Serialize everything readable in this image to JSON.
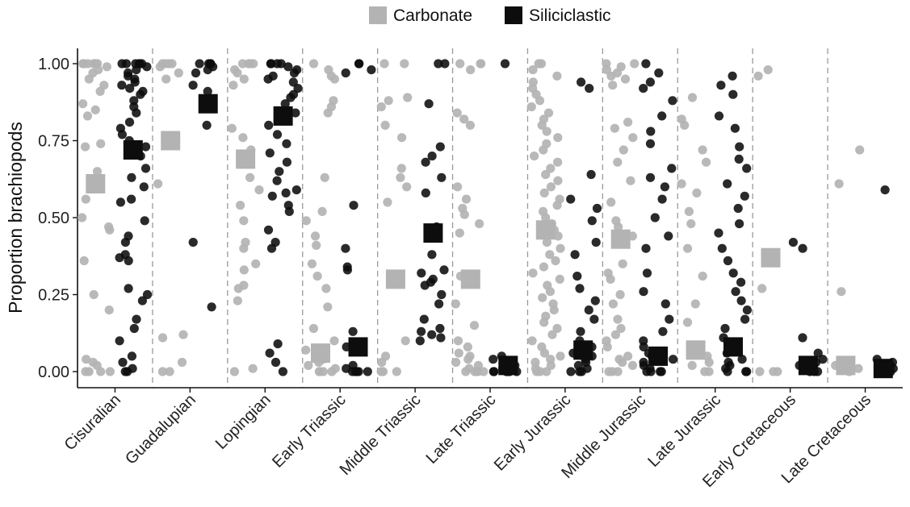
{
  "chart_data": {
    "type": "scatter",
    "subtype": "jittered strip plot with mean markers",
    "ylabel": "Proportion brachiopods",
    "xlabel": "",
    "ylim": [
      0,
      1
    ],
    "y_ticks": [
      "0.00",
      "0.25",
      "0.50",
      "0.75",
      "1.00"
    ],
    "grid": false,
    "legend_position": "top-center",
    "categories": [
      "Cisuralian",
      "Guadalupian",
      "Lopingian",
      "Early Triassic",
      "Middle Triassic",
      "Late Triassic",
      "Early Jurassic",
      "Middle Jurassic",
      "Late Jurassic",
      "Early Cretaceous",
      "Late Cretaceous"
    ],
    "series": [
      {
        "name": "Carbonate",
        "color": "#b3b3b3",
        "means": [
          0.61,
          0.75,
          0.69,
          0.06,
          0.3,
          0.3,
          0.46,
          0.43,
          0.07,
          0.37,
          0.02
        ],
        "points": [
          [
            1.0,
            1.0,
            1.0,
            1.0,
            1.0,
            1.0,
            1.0,
            0.99,
            0.98,
            0.97,
            0.95,
            0.93,
            0.91,
            0.87,
            0.85,
            0.83,
            0.74,
            0.73,
            0.65,
            0.6,
            0.56,
            0.5,
            0.47,
            0.46,
            0.36,
            0.25,
            0.2,
            0.04,
            0.03,
            0.02,
            0.0,
            0.0,
            0.0,
            0.0
          ],
          [
            1.0,
            1.0,
            1.0,
            1.0,
            0.99,
            0.97,
            0.95,
            0.74,
            0.61,
            0.12,
            0.11,
            0.03,
            0.0,
            0.0
          ],
          [
            1.0,
            1.0,
            1.0,
            1.0,
            0.98,
            0.97,
            0.95,
            0.93,
            0.79,
            0.76,
            0.72,
            0.63,
            0.59,
            0.54,
            0.49,
            0.42,
            0.4,
            0.35,
            0.33,
            0.28,
            0.27,
            0.23,
            0.01,
            0.0
          ],
          [
            1.0,
            0.98,
            0.96,
            0.95,
            0.88,
            0.86,
            0.84,
            0.63,
            0.52,
            0.49,
            0.44,
            0.41,
            0.35,
            0.31,
            0.27,
            0.21,
            0.14,
            0.1,
            0.07,
            0.05,
            0.04,
            0.03,
            0.02,
            0.01,
            0.0,
            0.0,
            0.0,
            0.0
          ],
          [
            1.0,
            1.0,
            0.89,
            0.88,
            0.86,
            0.8,
            0.76,
            0.66,
            0.63,
            0.6,
            0.55,
            0.1,
            0.05,
            0.03,
            0.0,
            0.0,
            0.0
          ],
          [
            1.0,
            1.0,
            1.0,
            0.98,
            0.84,
            0.82,
            0.8,
            0.6,
            0.56,
            0.53,
            0.51,
            0.48,
            0.45,
            0.31,
            0.22,
            0.15,
            0.1,
            0.08,
            0.06,
            0.05,
            0.04,
            0.03,
            0.02,
            0.01,
            0.0,
            0.0,
            0.0,
            0.0,
            0.0
          ],
          [
            1.0,
            1.0,
            0.98,
            0.96,
            0.94,
            0.92,
            0.9,
            0.88,
            0.86,
            0.84,
            0.82,
            0.8,
            0.78,
            0.76,
            0.74,
            0.72,
            0.7,
            0.68,
            0.66,
            0.64,
            0.62,
            0.6,
            0.58,
            0.56,
            0.54,
            0.52,
            0.5,
            0.48,
            0.46,
            0.44,
            0.42,
            0.4,
            0.38,
            0.36,
            0.34,
            0.32,
            0.3,
            0.28,
            0.26,
            0.24,
            0.22,
            0.2,
            0.18,
            0.16,
            0.14,
            0.12,
            0.1,
            0.08,
            0.06,
            0.05,
            0.04,
            0.03,
            0.02,
            0.01,
            0.0,
            0.0,
            0.0
          ],
          [
            1.0,
            1.0,
            0.99,
            0.98,
            0.97,
            0.96,
            0.95,
            0.93,
            0.81,
            0.79,
            0.76,
            0.72,
            0.68,
            0.62,
            0.55,
            0.49,
            0.47,
            0.44,
            0.35,
            0.32,
            0.3,
            0.25,
            0.22,
            0.17,
            0.14,
            0.12,
            0.1,
            0.08,
            0.05,
            0.04,
            0.03,
            0.02,
            0.0,
            0.0,
            0.0
          ],
          [
            0.89,
            0.82,
            0.8,
            0.72,
            0.68,
            0.61,
            0.58,
            0.52,
            0.48,
            0.4,
            0.31,
            0.22,
            0.16,
            0.08,
            0.05,
            0.03,
            0.02,
            0.0,
            0.0
          ],
          [
            0.98,
            0.96,
            0.27,
            0.0,
            0.0,
            0.0
          ],
          [
            0.72,
            0.61,
            0.26,
            0.03,
            0.02,
            0.01,
            0.0
          ]
        ]
      },
      {
        "name": "Siliciclastic",
        "color": "#0d0d0d",
        "means": [
          0.72,
          0.87,
          0.83,
          0.08,
          0.45,
          0.02,
          0.07,
          0.05,
          0.08,
          0.02,
          0.01
        ],
        "points": [
          [
            1.0,
            1.0,
            1.0,
            1.0,
            1.0,
            1.0,
            0.99,
            0.98,
            0.97,
            0.96,
            0.95,
            0.94,
            0.93,
            0.92,
            0.91,
            0.9,
            0.88,
            0.86,
            0.84,
            0.81,
            0.79,
            0.77,
            0.75,
            0.73,
            0.7,
            0.66,
            0.63,
            0.6,
            0.56,
            0.55,
            0.49,
            0.44,
            0.42,
            0.38,
            0.37,
            0.36,
            0.27,
            0.25,
            0.23,
            0.17,
            0.14,
            0.1,
            0.05,
            0.03,
            0.01,
            0.0,
            0.0
          ],
          [
            1.0,
            1.0,
            1.0,
            1.0,
            0.99,
            0.98,
            0.97,
            0.93,
            0.91,
            0.8,
            0.42,
            0.21
          ],
          [
            1.0,
            1.0,
            1.0,
            1.0,
            0.99,
            0.98,
            0.97,
            0.96,
            0.95,
            0.94,
            0.92,
            0.9,
            0.89,
            0.87,
            0.84,
            0.8,
            0.77,
            0.74,
            0.71,
            0.68,
            0.65,
            0.62,
            0.59,
            0.58,
            0.57,
            0.54,
            0.52,
            0.46,
            0.42,
            0.4,
            0.09,
            0.06,
            0.03,
            0.0
          ],
          [
            1.0,
            1.0,
            0.98,
            0.97,
            0.54,
            0.4,
            0.34,
            0.33,
            0.13,
            0.08,
            0.02,
            0.01,
            0.0,
            0.0,
            0.0,
            0.0,
            0.0
          ],
          [
            1.0,
            1.0,
            0.87,
            0.73,
            0.7,
            0.68,
            0.63,
            0.58,
            0.47,
            0.45,
            0.38,
            0.33,
            0.32,
            0.3,
            0.29,
            0.28,
            0.25,
            0.22,
            0.17,
            0.14,
            0.13,
            0.12,
            0.11,
            0.1
          ],
          [
            1.0,
            0.05,
            0.04,
            0.03,
            0.02,
            0.01,
            0.0,
            0.0,
            0.0,
            0.0,
            0.0,
            0.0
          ],
          [
            0.94,
            0.92,
            0.64,
            0.56,
            0.53,
            0.49,
            0.42,
            0.38,
            0.31,
            0.27,
            0.23,
            0.2,
            0.17,
            0.13,
            0.1,
            0.08,
            0.06,
            0.05,
            0.04,
            0.03,
            0.02,
            0.01,
            0.0,
            0.0,
            0.0
          ],
          [
            1.0,
            0.97,
            0.94,
            0.92,
            0.88,
            0.83,
            0.78,
            0.74,
            0.66,
            0.63,
            0.6,
            0.56,
            0.5,
            0.44,
            0.4,
            0.32,
            0.26,
            0.22,
            0.17,
            0.13,
            0.1,
            0.08,
            0.06,
            0.05,
            0.04,
            0.03,
            0.02,
            0.01,
            0.0,
            0.0,
            0.0,
            0.0
          ],
          [
            0.96,
            0.93,
            0.9,
            0.83,
            0.79,
            0.73,
            0.69,
            0.66,
            0.61,
            0.57,
            0.53,
            0.48,
            0.45,
            0.4,
            0.36,
            0.32,
            0.29,
            0.26,
            0.23,
            0.2,
            0.17,
            0.14,
            0.11,
            0.08,
            0.06,
            0.04,
            0.03,
            0.02,
            0.01,
            0.0,
            0.0,
            0.0
          ],
          [
            0.42,
            0.4,
            0.11,
            0.06,
            0.04,
            0.03,
            0.02,
            0.01,
            0.0,
            0.0,
            0.0
          ],
          [
            0.59,
            0.04,
            0.03,
            0.02,
            0.01,
            0.0,
            0.0,
            0.0
          ]
        ]
      }
    ]
  }
}
